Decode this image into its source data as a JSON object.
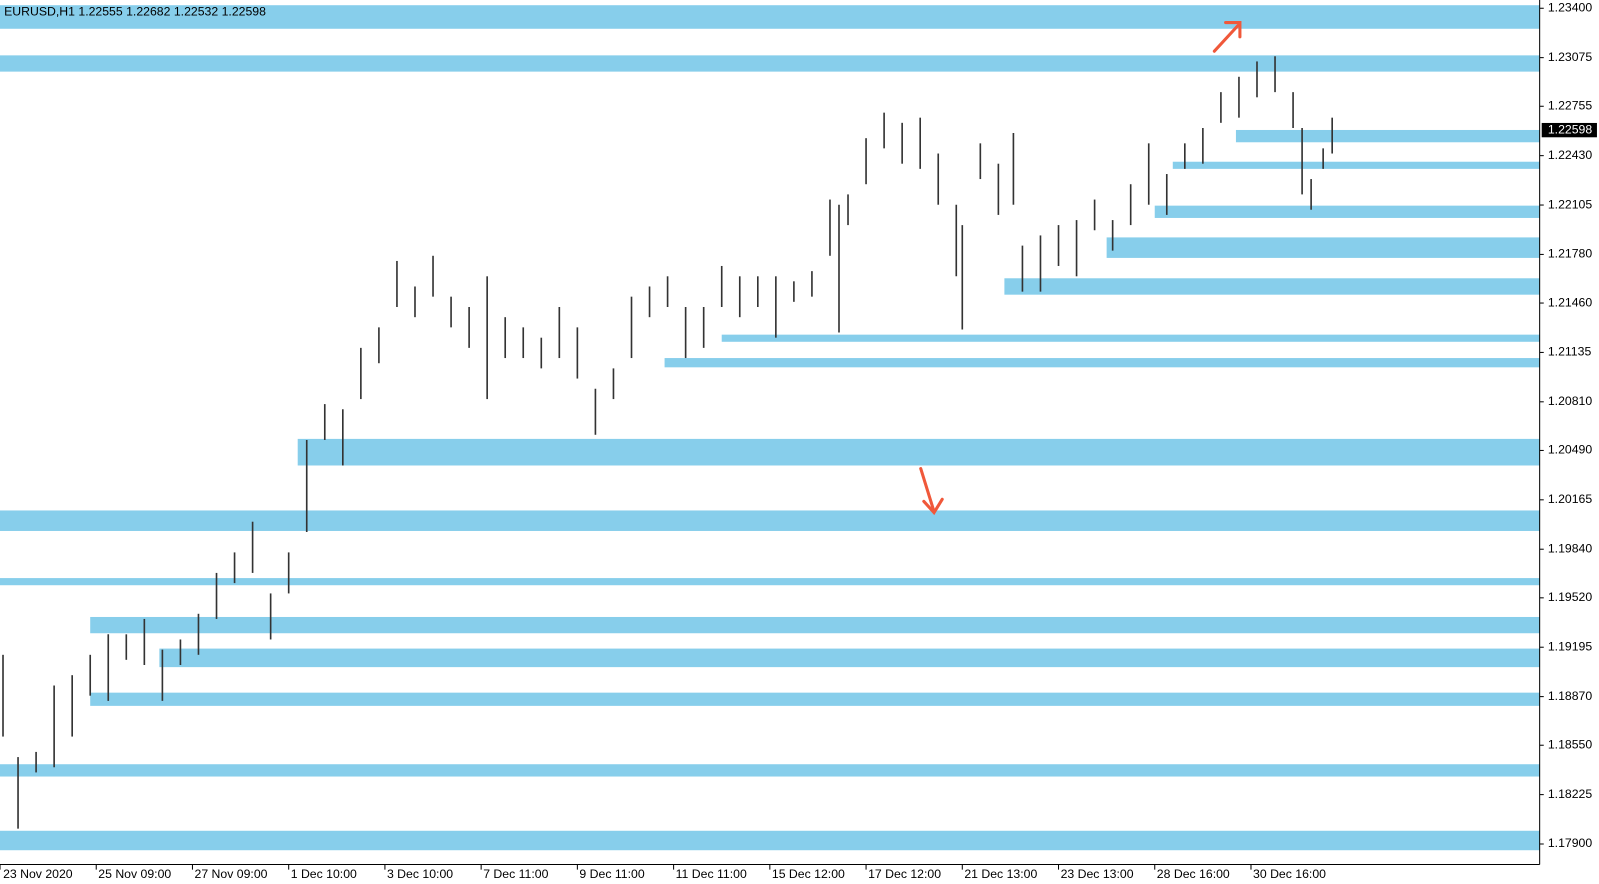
{
  "chart_data": {
    "type": "range",
    "title": "EURUSD,H1  1.22555 1.22682 1.22532 1.22598",
    "color": "#333333",
    "zone_color": "#87ceeb",
    "xlim": [
      0,
      512
    ],
    "ylim": [
      1.17765,
      1.23454
    ],
    "xticks": [
      {
        "value": 0,
        "label": "23 Nov 2020"
      },
      {
        "value": 32,
        "label": "25 Nov 09:00"
      },
      {
        "value": 64,
        "label": "27 Nov 09:00"
      },
      {
        "value": 96,
        "label": "1 Dec 10:00"
      },
      {
        "value": 128,
        "label": "3 Dec 10:00"
      },
      {
        "value": 160,
        "label": "7 Dec 11:00"
      },
      {
        "value": 192,
        "label": "9 Dec 11:00"
      },
      {
        "value": 224,
        "label": "11 Dec 11:00"
      },
      {
        "value": 256,
        "label": "15 Dec 12:00"
      },
      {
        "value": 288,
        "label": "17 Dec 12:00"
      },
      {
        "value": 320,
        "label": "21 Dec 13:00"
      },
      {
        "value": 352,
        "label": "23 Dec 13:00"
      },
      {
        "value": 384,
        "label": "28 Dec 16:00"
      },
      {
        "value": 416,
        "label": "30 Dec 16:00"
      }
    ],
    "yticks": [
      {
        "value": 1.234,
        "label": "1.23400"
      },
      {
        "value": 1.23075,
        "label": "1.23075"
      },
      {
        "value": 1.22755,
        "label": "1.22755"
      },
      {
        "value": 1.2243,
        "label": "1.22430"
      },
      {
        "value": 1.22105,
        "label": "1.22105"
      },
      {
        "value": 1.2178,
        "label": "1.21780"
      },
      {
        "value": 1.2146,
        "label": "1.21460"
      },
      {
        "value": 1.21135,
        "label": "1.21135"
      },
      {
        "value": 1.2081,
        "label": "1.20810"
      },
      {
        "value": 1.2049,
        "label": "1.20490"
      },
      {
        "value": 1.20165,
        "label": "1.20165"
      },
      {
        "value": 1.1984,
        "label": "1.19840"
      },
      {
        "value": 1.1952,
        "label": "1.19520"
      },
      {
        "value": 1.19195,
        "label": "1.19195"
      },
      {
        "value": 1.1887,
        "label": "1.18870"
      },
      {
        "value": 1.1855,
        "label": "1.18550"
      },
      {
        "value": 1.18225,
        "label": "1.18225"
      },
      {
        "value": 1.179,
        "label": "1.17900"
      }
    ],
    "current_price": {
      "value": 1.22598,
      "label": "1.22598"
    },
    "x": [
      1,
      6,
      12,
      18,
      24,
      30,
      36,
      42,
      48,
      54,
      60,
      66,
      72,
      78,
      84,
      90,
      96,
      102,
      108,
      114,
      120,
      126,
      132,
      138,
      144,
      150,
      156,
      162,
      168,
      174,
      180,
      186,
      192,
      198,
      204,
      210,
      216,
      222,
      228,
      234,
      240,
      246,
      252,
      258,
      264,
      270,
      276,
      279,
      282,
      288,
      294,
      300,
      306,
      312,
      318,
      320,
      326,
      332,
      337,
      340,
      346,
      352,
      358,
      364,
      370,
      376,
      382,
      388,
      394,
      400,
      406,
      412,
      418,
      424,
      430,
      433,
      436,
      440,
      443
    ],
    "high": [
      1.19145,
      1.18472,
      1.18506,
      1.18943,
      1.19011,
      1.19145,
      1.1928,
      1.1928,
      1.19381,
      1.19179,
      1.19246,
      1.19415,
      1.19684,
      1.19819,
      1.20021,
      1.19549,
      1.19819,
      1.20559,
      1.20795,
      1.20761,
      1.21165,
      1.213,
      1.21737,
      1.21569,
      1.21771,
      1.21502,
      1.21434,
      1.21636,
      1.21367,
      1.213,
      1.21232,
      1.21434,
      1.213,
      1.20896,
      1.2103,
      1.21502,
      1.21569,
      1.21636,
      1.21434,
      1.21434,
      1.21704,
      1.21636,
      1.21636,
      1.21636,
      1.21603,
      1.2167,
      1.22141,
      1.22107,
      1.22175,
      1.22545,
      1.22713,
      1.22646,
      1.2268,
      1.22444,
      1.22107,
      1.21973,
      1.22511,
      1.22377,
      1.22579,
      1.21838,
      1.21905,
      1.21973,
      1.22006,
      1.22141,
      1.22006,
      1.22242,
      1.22511,
      1.22309,
      1.22511,
      1.22612,
      1.22848,
      1.22949,
      1.2305,
      1.23084,
      1.22848,
      1.22612,
      1.22276,
      1.22478,
      1.2268
    ],
    "low": [
      1.18607,
      1.18001,
      1.18371,
      1.18405,
      1.18607,
      1.18876,
      1.18842,
      1.19112,
      1.19078,
      1.18842,
      1.19078,
      1.19145,
      1.19381,
      1.19617,
      1.19684,
      1.19246,
      1.19549,
      1.19953,
      1.20559,
      1.20391,
      1.20828,
      1.21064,
      1.21434,
      1.21367,
      1.21502,
      1.213,
      1.21165,
      1.20828,
      1.21098,
      1.21098,
      1.2103,
      1.21098,
      1.20963,
      1.20593,
      1.20828,
      1.21098,
      1.21367,
      1.21434,
      1.21098,
      1.21165,
      1.21434,
      1.21367,
      1.21434,
      1.21232,
      1.21468,
      1.21502,
      1.21771,
      1.21266,
      1.21973,
      1.22242,
      1.22478,
      1.22377,
      1.22343,
      1.22107,
      1.21636,
      1.21286,
      1.22276,
      1.2204,
      1.22107,
      1.21535,
      1.21535,
      1.21704,
      1.21636,
      1.21939,
      1.21805,
      1.21973,
      1.22107,
      1.2204,
      1.22343,
      1.22377,
      1.22646,
      1.2268,
      1.22814,
      1.22848,
      1.22612,
      1.22175,
      1.22074,
      1.22343,
      1.22444
    ],
    "zones": [
      {
        "from": 1.23265,
        "to": 1.2342,
        "start": 0
      },
      {
        "from": 1.22983,
        "to": 1.2309,
        "start": 0
      },
      {
        "from": 1.22518,
        "to": 1.22599,
        "start": 411
      },
      {
        "from": 1.22343,
        "to": 1.2239,
        "start": 390
      },
      {
        "from": 1.2202,
        "to": 1.22101,
        "start": 384
      },
      {
        "from": 1.21757,
        "to": 1.21892,
        "start": 368
      },
      {
        "from": 1.21515,
        "to": 1.21623,
        "start": 334
      },
      {
        "from": 1.21205,
        "to": 1.21252,
        "start": 240
      },
      {
        "from": 1.21037,
        "to": 1.21098,
        "start": 221
      },
      {
        "from": 1.20391,
        "to": 1.20566,
        "start": 99
      },
      {
        "from": 1.1996,
        "to": 1.20095,
        "start": 0
      },
      {
        "from": 1.19603,
        "to": 1.1965,
        "start": 0
      },
      {
        "from": 1.19287,
        "to": 1.19394,
        "start": 30
      },
      {
        "from": 1.19064,
        "to": 1.19186,
        "start": 53
      },
      {
        "from": 1.18809,
        "to": 1.18896,
        "start": 30
      },
      {
        "from": 1.18344,
        "to": 1.18425,
        "start": 0
      },
      {
        "from": 1.17859,
        "to": 1.17987,
        "start": 0
      }
    ]
  }
}
